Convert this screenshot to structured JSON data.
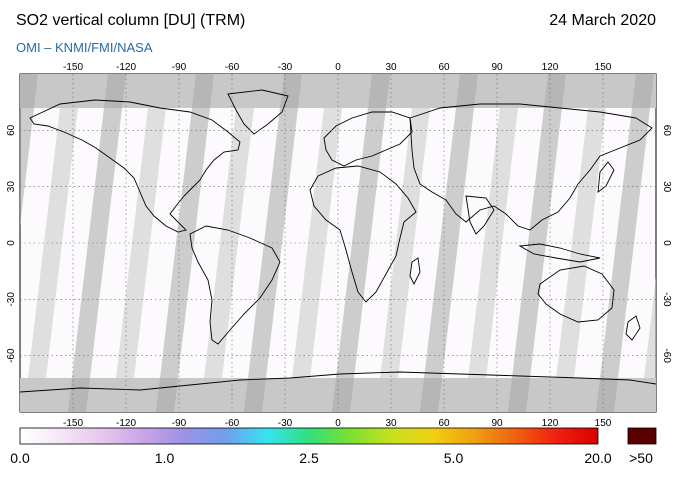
{
  "title": "SO2 vertical column [DU] (TRM)",
  "date": "24 March 2020",
  "credit": "OMI  –  KNMI/FMI/NASA",
  "axes": {
    "lon_ticks": [
      -150,
      -120,
      -90,
      -60,
      -30,
      0,
      30,
      60,
      90,
      120,
      150
    ],
    "lat_ticks": [
      60,
      30,
      0,
      -30,
      -60
    ],
    "lon_range": [
      -180,
      180
    ],
    "lat_range": [
      -90,
      90
    ]
  },
  "colorbar": {
    "labels": [
      "0.0",
      "1.0",
      "2.5",
      "5.0",
      "20.0"
    ],
    "overflow_label": ">50",
    "colors": [
      "#ffffff",
      "#f6e6f6",
      "#e6c6ee",
      "#c9a4e6",
      "#9a92e4",
      "#6fa0ee",
      "#36e4f0",
      "#30e07c",
      "#7ce030",
      "#c8e020",
      "#f0d010",
      "#f0a010",
      "#f06010",
      "#f02010",
      "#d80000"
    ],
    "overflow_color": "#5a0000"
  },
  "colors": {
    "background_nodata": "#c8c8c8",
    "orbit_gap": "#a8a8a8",
    "coast": "#000000",
    "ocean_low": "#fcfafd"
  }
}
